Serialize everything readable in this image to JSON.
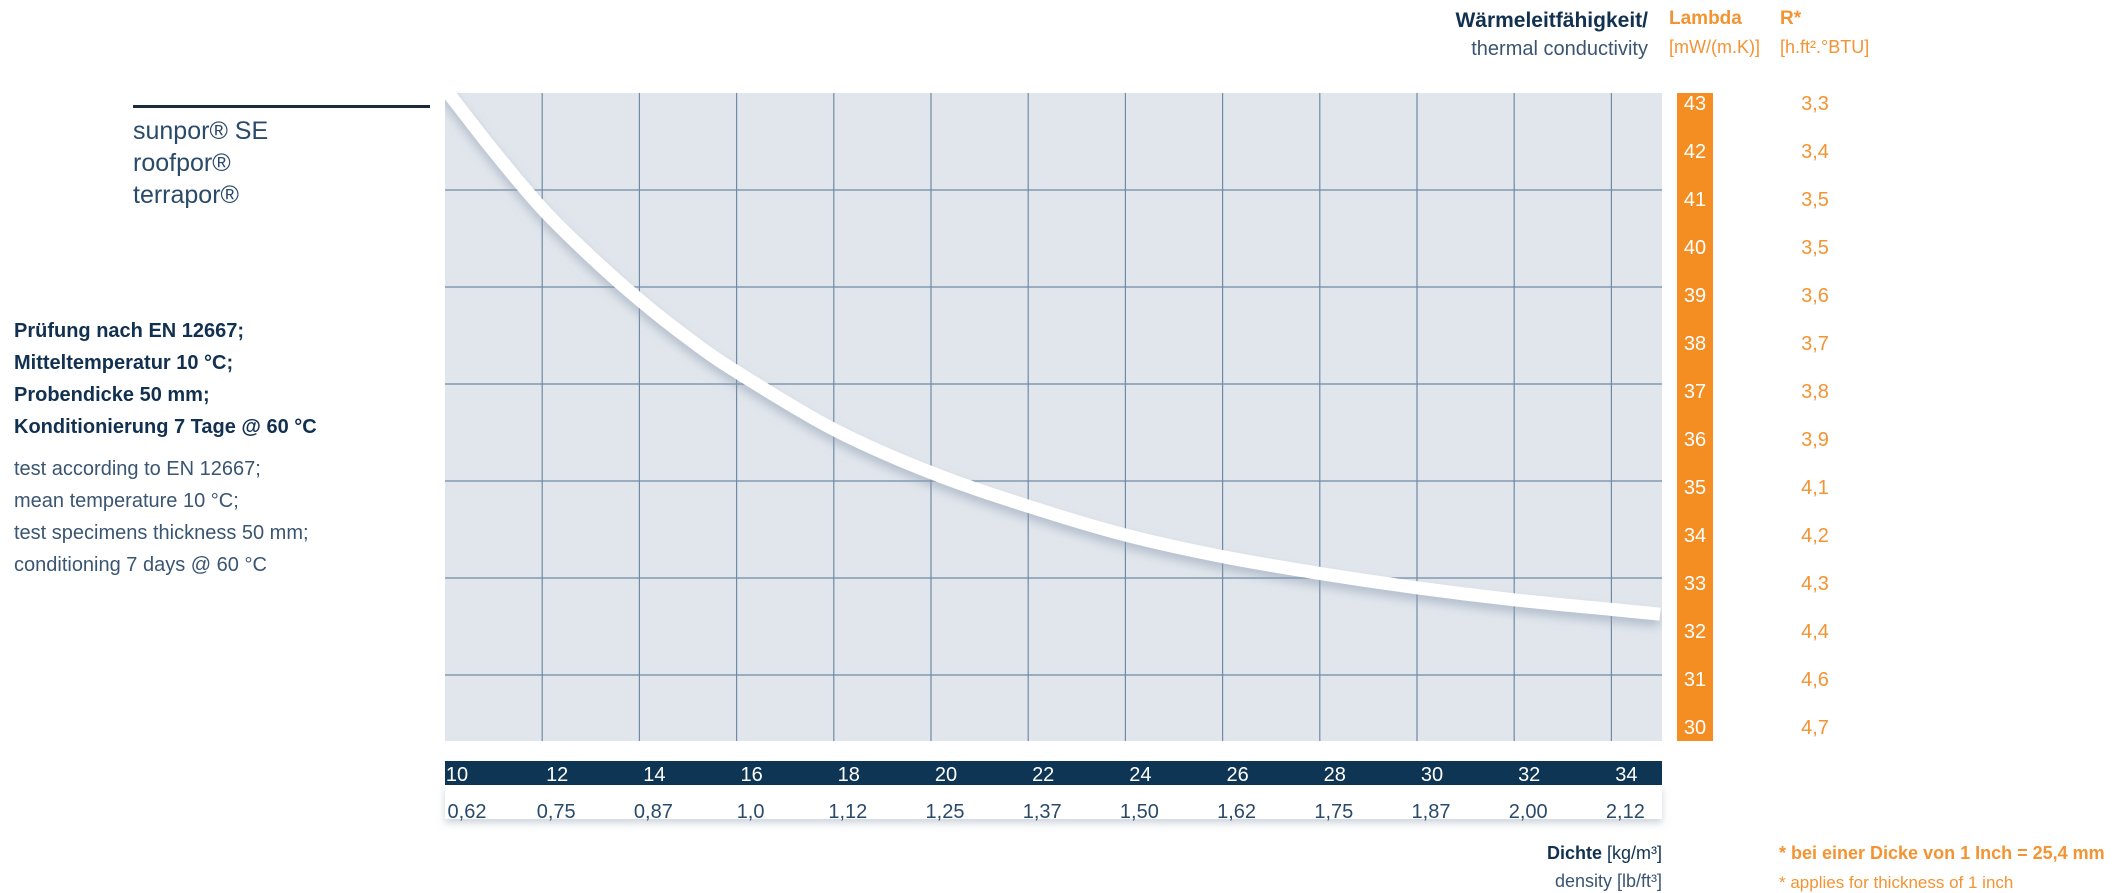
{
  "legend": {
    "items": [
      "sunpor® SE",
      "roofpor®",
      "terrapor®"
    ]
  },
  "notes": {
    "de": [
      "Prüfung nach EN 12667;",
      "Mitteltemperatur 10 °C;",
      "Probendicke 50 mm;",
      "Konditionierung 7 Tage @ 60 °C"
    ],
    "en": [
      "test according to EN 12667;",
      "mean temperature 10 °C;",
      "test specimens thickness 50 mm;",
      "conditioning 7 days @ 60 °C"
    ]
  },
  "header": {
    "conductivity_de": "Wärmeleitfähigkeit/",
    "conductivity_en": "thermal conductivity",
    "lambda": "Lambda",
    "lambda_unit": "[mW/(m.K)]",
    "r": "R*",
    "r_unit": "[h.ft².°BTU]"
  },
  "axis_labels": {
    "density_de_word": "Dichte",
    "density_de_unit": "[kg/m³]",
    "density_en": "density [lb/ft³]"
  },
  "footnote": {
    "de": "* bei einer Dicke von 1 Inch = 25,4 mm",
    "en": "* applies for thickness of 1 inch"
  },
  "colors": {
    "plot_bg": "#e1e6ec",
    "grid": "#6f8aa6",
    "curve": "#ffffff",
    "axis_band": "#0e3553",
    "lambda_band": "#f48d22",
    "accent_orange": "#f39332"
  },
  "chart_data": {
    "type": "line",
    "x_kg_m3": [
      10,
      12,
      14,
      16,
      18,
      20,
      22,
      24,
      26,
      28,
      30,
      32,
      34
    ],
    "x_kg_m3_labels": [
      "10",
      "12",
      "14",
      "16",
      "18",
      "20",
      "22",
      "24",
      "26",
      "28",
      "30",
      "32",
      "34"
    ],
    "x_lb_ft3_labels": [
      "0,62",
      "0,75",
      "0,87",
      "1,0",
      "1,12",
      "1,25",
      "1,37",
      "1,50",
      "1,62",
      "1,75",
      "1,87",
      "2,00",
      "2,12"
    ],
    "xlim": [
      10,
      35
    ],
    "lambda_ticks": [
      43,
      42,
      41,
      40,
      39,
      38,
      37,
      36,
      35,
      34,
      33,
      32,
      31,
      30
    ],
    "r_labels": [
      "3,3",
      "3,4",
      "3,5",
      "3,5",
      "3,6",
      "3,7",
      "3,8",
      "3,9",
      "4,1",
      "4,2",
      "4,3",
      "4,4",
      "4,6",
      "4,7"
    ],
    "ylim": [
      29.7,
      43.5
    ],
    "series": [
      {
        "x": [
          10,
          11,
          12,
          13,
          14,
          15,
          16,
          18,
          20,
          22,
          24,
          26,
          28,
          30,
          32,
          34,
          35
        ],
        "y": [
          43.3,
          42.0,
          40.8,
          39.8,
          38.9,
          38.1,
          37.4,
          36.2,
          35.3,
          34.6,
          34.0,
          33.55,
          33.2,
          32.9,
          32.65,
          32.45,
          32.35
        ]
      }
    ]
  }
}
